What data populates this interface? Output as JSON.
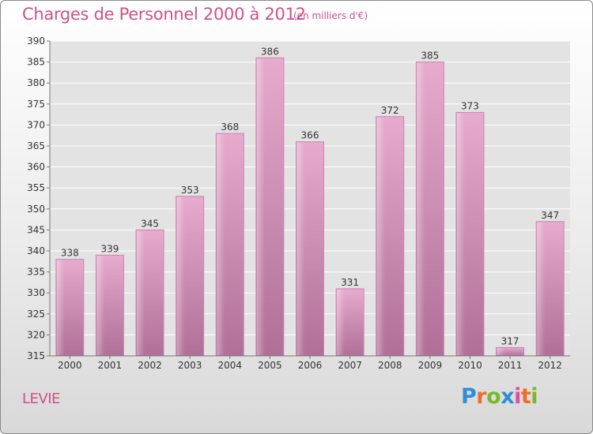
{
  "title": "Charges de Personnel 2000 à 2012",
  "subtitle": "(en milliers d'€)",
  "commune": "LEVIE",
  "logo": {
    "text": "Proxiti",
    "letters": [
      "P",
      "r",
      "o",
      "x",
      "i",
      "t",
      "i"
    ],
    "colors": [
      "#2f8fd6",
      "#e8712a",
      "#79b82d",
      "#2f8fd6",
      "#e04c9a",
      "#e8712a",
      "#79b82d"
    ]
  },
  "colors": {
    "accent": "#d0508a",
    "bar_light": "#e3a6ca",
    "bar_dark": "#b7729d"
  },
  "chart_data": {
    "type": "bar",
    "categories": [
      "2000",
      "2001",
      "2002",
      "2003",
      "2004",
      "2005",
      "2006",
      "2007",
      "2008",
      "2009",
      "2010",
      "2011",
      "2012"
    ],
    "values": [
      338,
      339,
      345,
      353,
      368,
      386,
      366,
      331,
      372,
      385,
      373,
      317,
      347
    ],
    "title": "Charges de Personnel 2000 à 2012",
    "ylabel": "",
    "xlabel": "",
    "ylim": [
      315,
      390
    ],
    "yticks": [
      315,
      320,
      325,
      330,
      335,
      340,
      345,
      350,
      355,
      360,
      365,
      370,
      375,
      380,
      385,
      390
    ],
    "grid": true,
    "data_labels": true
  }
}
